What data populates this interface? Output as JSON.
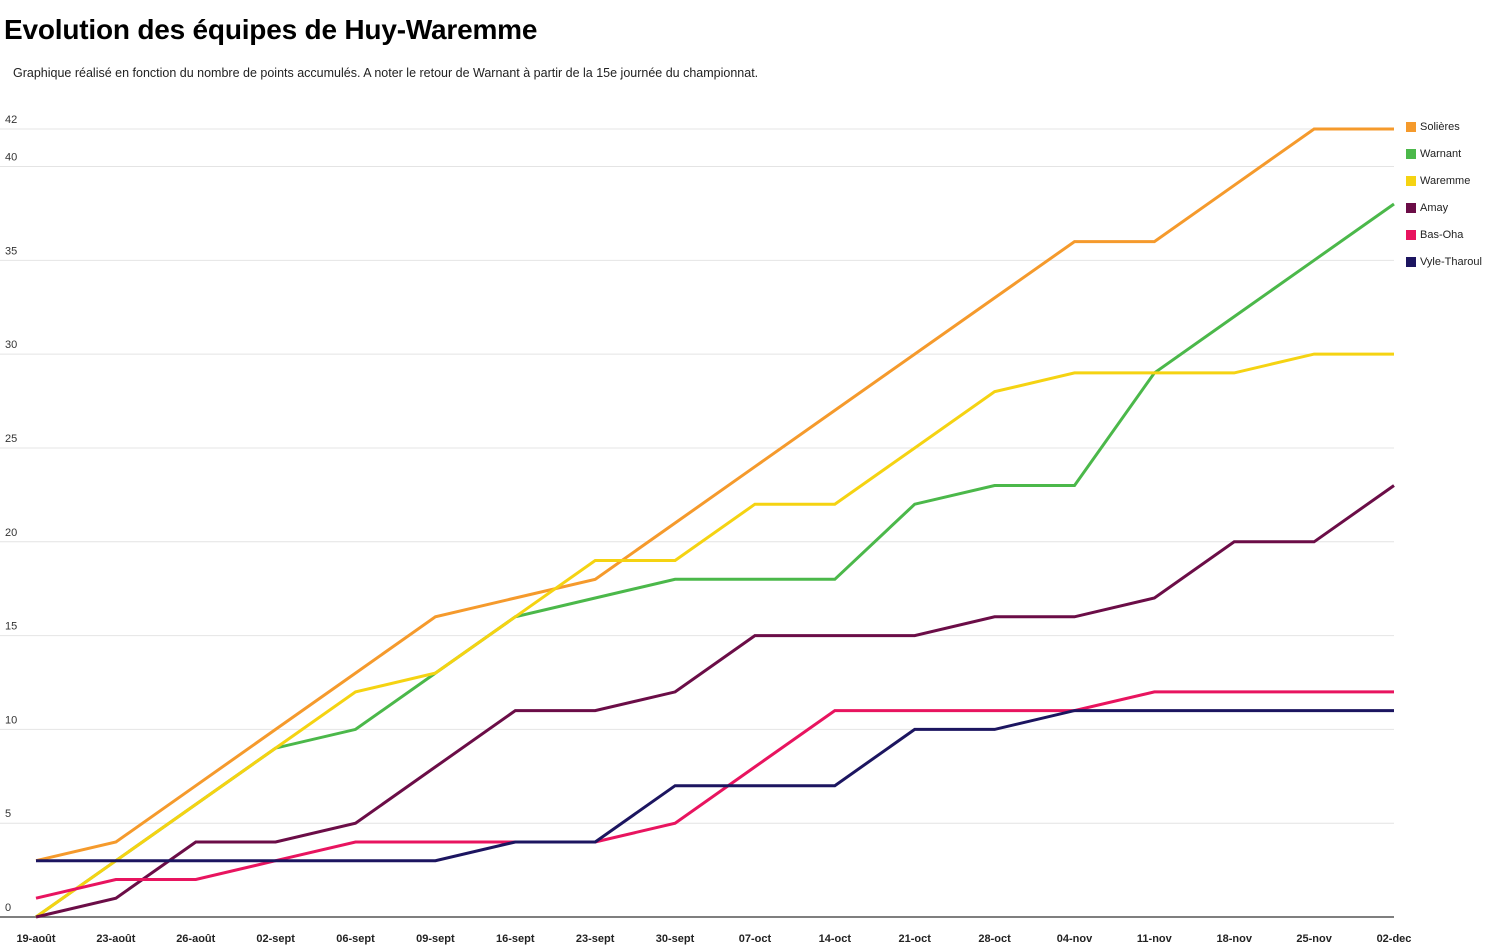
{
  "page": {
    "title": "Evolution des équipes de Huy-Waremme",
    "subtitle": "Graphique réalisé en fonction du nombre de points accumulés. A noter le retour de Warnant à partir de la 15e journée du championnat."
  },
  "chart_data": {
    "type": "line",
    "title": "Evolution des équipes de Huy-Waremme",
    "subtitle": "Graphique réalisé en fonction du nombre de points accumulés. A noter le retour de Warnant à partir de la 15e journée du championnat.",
    "xlabel": "",
    "ylabel": "",
    "ylim": [
      0,
      42
    ],
    "yticks": [
      0,
      5,
      10,
      15,
      20,
      25,
      30,
      35,
      40,
      42
    ],
    "grid": true,
    "legend": "right",
    "categories": [
      "19-août",
      "23-août",
      "26-août",
      "02-sept",
      "06-sept",
      "09-sept",
      "16-sept",
      "23-sept",
      "30-sept",
      "07-oct",
      "14-oct",
      "21-oct",
      "28-oct",
      "04-nov",
      "11-nov",
      "18-nov",
      "25-nov",
      "02-dec"
    ],
    "series": [
      {
        "name": "Solières",
        "color": "#f59a2c",
        "values": [
          3,
          4,
          7,
          10,
          13,
          16,
          17,
          18,
          21,
          24,
          27,
          30,
          33,
          36,
          36,
          39,
          42,
          42
        ]
      },
      {
        "name": "Warnant",
        "color": "#4bb84a",
        "values": [
          0,
          3,
          6,
          9,
          10,
          13,
          16,
          17,
          18,
          18,
          18,
          22,
          23,
          23,
          29,
          32,
          35,
          38
        ]
      },
      {
        "name": "Waremme",
        "color": "#f5d312",
        "values": [
          0,
          3,
          6,
          9,
          12,
          13,
          16,
          19,
          19,
          22,
          22,
          25,
          28,
          29,
          29,
          29,
          30,
          30
        ]
      },
      {
        "name": "Amay",
        "color": "#6b0d47",
        "values": [
          0,
          1,
          4,
          4,
          5,
          8,
          11,
          11,
          12,
          15,
          15,
          15,
          16,
          16,
          17,
          20,
          20,
          23
        ]
      },
      {
        "name": "Bas-Oha",
        "color": "#e8145f",
        "values": [
          1,
          2,
          2,
          3,
          4,
          4,
          4,
          4,
          5,
          8,
          11,
          11,
          11,
          11,
          12,
          12,
          12,
          12
        ]
      },
      {
        "name": "Vyle-Tharoul",
        "color": "#1c1560",
        "values": [
          3,
          3,
          3,
          3,
          3,
          3,
          4,
          4,
          7,
          7,
          7,
          10,
          10,
          11,
          11,
          11,
          11,
          11
        ]
      }
    ]
  }
}
